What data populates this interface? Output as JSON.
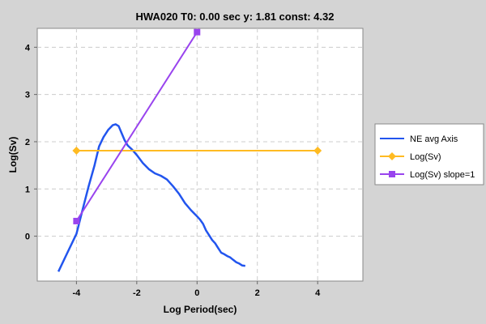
{
  "chart_data": {
    "type": "line",
    "title": "HWA020 T0: 0.00 sec  y: 1.81 const: 4.32",
    "xlabel": "Log Period(sec)",
    "ylabel": "Log(Sv)",
    "xlim": [
      -5.3,
      5.5
    ],
    "ylim": [
      -0.95,
      4.4
    ],
    "xticks": [
      -4,
      -2,
      0,
      2,
      4
    ],
    "yticks": [
      0,
      1,
      2,
      3,
      4
    ],
    "grid": true,
    "legend_position": "right",
    "series": [
      {
        "name": "NE avg Axis",
        "color": "#2255ee",
        "marker": "none",
        "x": [
          -4.6,
          -4.3,
          -4.0,
          -3.8,
          -3.6,
          -3.4,
          -3.25,
          -3.1,
          -2.95,
          -2.8,
          -2.7,
          -2.6,
          -2.5,
          -2.4,
          -2.3,
          -2.15,
          -2.0,
          -1.8,
          -1.6,
          -1.4,
          -1.2,
          -1.0,
          -0.8,
          -0.6,
          -0.4,
          -0.2,
          0.0,
          0.1,
          0.2,
          0.3,
          0.4,
          0.5,
          0.6,
          0.7,
          0.8,
          0.9,
          1.0,
          1.1,
          1.2,
          1.3,
          1.4,
          1.5,
          1.6
        ],
        "y": [
          -0.75,
          -0.35,
          0.05,
          0.55,
          1.05,
          1.5,
          1.9,
          2.1,
          2.25,
          2.35,
          2.37,
          2.33,
          2.18,
          2.03,
          1.92,
          1.83,
          1.72,
          1.55,
          1.42,
          1.33,
          1.28,
          1.2,
          1.06,
          0.9,
          0.7,
          0.55,
          0.42,
          0.35,
          0.26,
          0.12,
          0.02,
          -0.08,
          -0.15,
          -0.25,
          -0.35,
          -0.38,
          -0.42,
          -0.45,
          -0.5,
          -0.55,
          -0.58,
          -0.62,
          -0.63
        ]
      },
      {
        "name": "Log(Sv)",
        "color": "#ffbb22",
        "marker": "diamond",
        "x": [
          -4,
          4
        ],
        "y": [
          1.81,
          1.81
        ]
      },
      {
        "name": "Log(Sv) slope=1",
        "color": "#9944ee",
        "marker": "square",
        "x": [
          -4,
          0
        ],
        "y": [
          0.32,
          4.32
        ]
      }
    ]
  }
}
